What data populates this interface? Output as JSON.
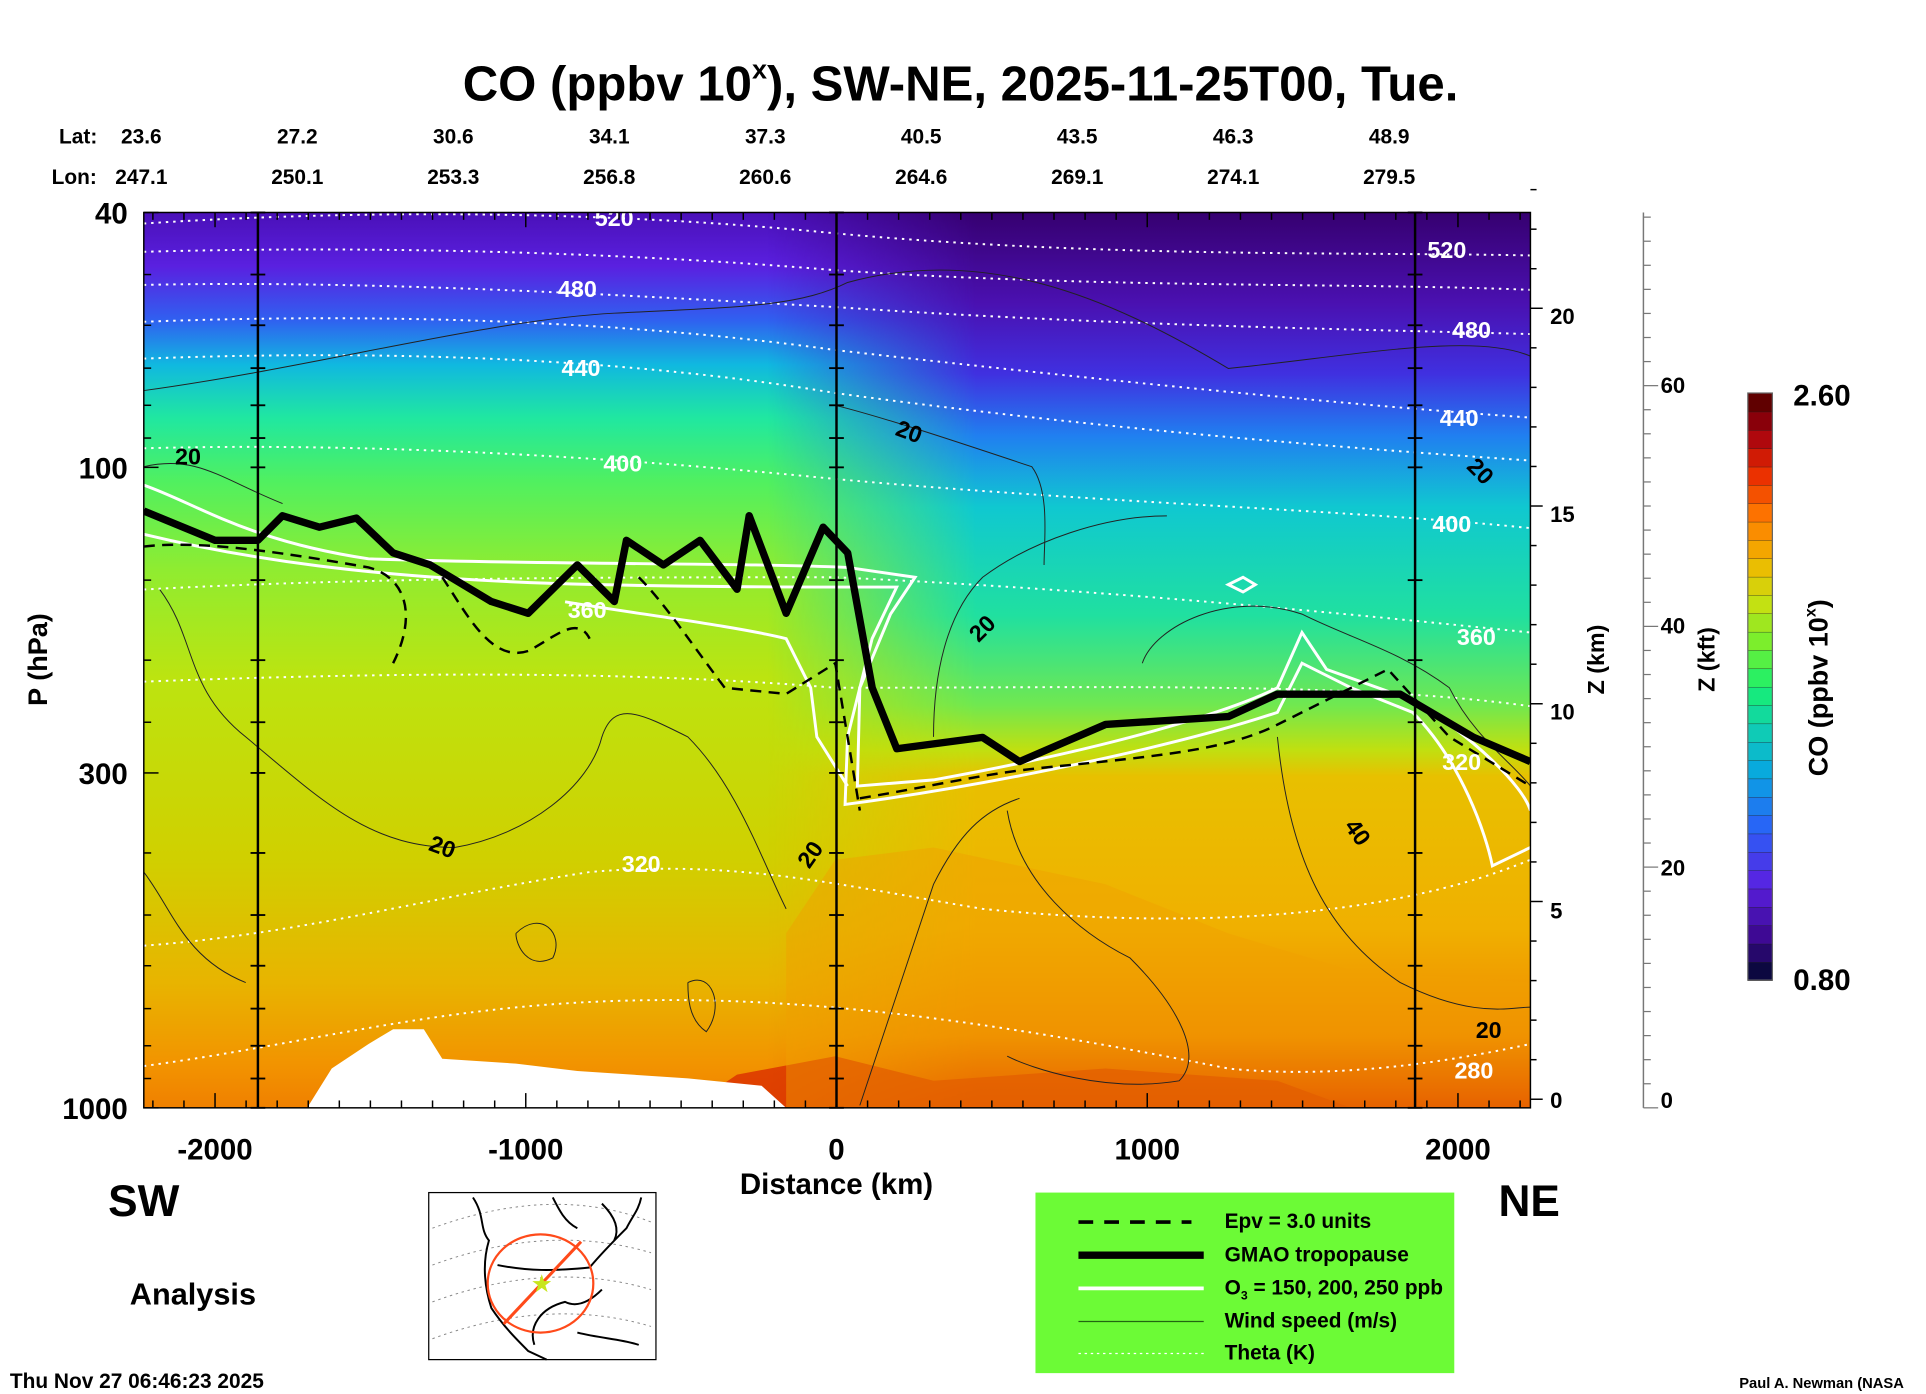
{
  "chart_data": {
    "type": "heatmap",
    "title": "CO (ppbv 10",
    "title_sup": "x",
    "title_rest": "), SW-NE, 2025-11-25T00, Tue.",
    "xlabel": "Distance (km)",
    "ylabel": "P (hPa)",
    "xlim": [
      -2230,
      2230
    ],
    "ylim": [
      1000,
      40
    ],
    "yscale": "log",
    "x_ticks": [
      -2000,
      -1000,
      0,
      1000,
      2000
    ],
    "x_tick_labels": [
      "-2000",
      "-1000",
      "0",
      "1000",
      "2000"
    ],
    "y_ticks": [
      40,
      100,
      300,
      1000
    ],
    "y_tick_labels": [
      "40",
      "100",
      "300",
      "1000"
    ],
    "vertical_reference_lines_km": [
      -1862,
      0,
      1862
    ],
    "lat_label": "Lat:",
    "lon_label": "Lon:",
    "lat": [
      "23.6",
      "27.2",
      "30.6",
      "34.1",
      "37.3",
      "40.5",
      "43.5",
      "46.3",
      "48.9"
    ],
    "lon": [
      "247.1",
      "250.1",
      "253.3",
      "256.8",
      "260.6",
      "264.6",
      "269.1",
      "274.1",
      "279.5"
    ],
    "z_km_axis": {
      "label": "Z (km)",
      "ticks": [
        "0",
        "5",
        "10",
        "15",
        "20"
      ]
    },
    "z_kft_axis": {
      "label": "Z (kft)",
      "ticks": [
        "0",
        "20",
        "40",
        "60"
      ]
    },
    "colorbar": {
      "label": "CO (ppbv 10",
      "label_sup": "x",
      "label_end": ")",
      "min": "0.80",
      "max": "2.60",
      "levels": 32
    },
    "tropopause": {
      "distance_km": [
        -2229,
        -2000,
        -1862,
        -1783,
        -1664,
        -1545,
        -1427,
        -1308,
        -1111,
        -992,
        -834,
        -715,
        -676,
        -557,
        -439,
        -320,
        -281,
        -162,
        -43,
        36,
        115,
        194,
        470,
        589,
        866,
        1261,
        1419,
        1814,
        2051,
        2233
      ],
      "pressure_hpa": [
        117,
        130,
        130,
        119,
        124,
        120,
        136,
        142,
        162,
        169,
        142,
        162,
        130,
        142,
        130,
        155,
        119,
        169,
        124,
        136,
        221,
        275,
        264,
        288,
        252,
        245,
        226,
        226,
        264,
        288
      ]
    },
    "theta_labels_k": [
      "520",
      "480",
      "440",
      "400",
      "360",
      "320",
      "280",
      "520",
      "480",
      "440",
      "400",
      "360",
      "320"
    ],
    "wind_labels_ms": [
      "20",
      "20",
      "20",
      "20",
      "20",
      "20",
      "40",
      "20"
    ],
    "side_left": "SW",
    "side_right": "NE",
    "legend": {
      "placement": "bottom-right",
      "items": [
        {
          "label": "Epv = 3.0 units",
          "style": "dashed"
        },
        {
          "label": "GMAO tropopause",
          "style": "thick"
        },
        {
          "label_pre": "O",
          "label_sub": "3",
          "label": " = 150, 200, 250 ppb",
          "style": "white"
        },
        {
          "label": "Wind speed (m/s)",
          "style": "thin"
        },
        {
          "label": "Theta (K)",
          "style": "dotted"
        }
      ]
    }
  },
  "footer": {
    "analysis": "Analysis",
    "timestamp": "Thu Nov 27 06:46:23 2025",
    "credit": "Paul A. Newman (NASA"
  },
  "colors": {
    "legend_bg": "#6cfb36",
    "track": "#ff4a1a",
    "star": "#c8e61e"
  }
}
